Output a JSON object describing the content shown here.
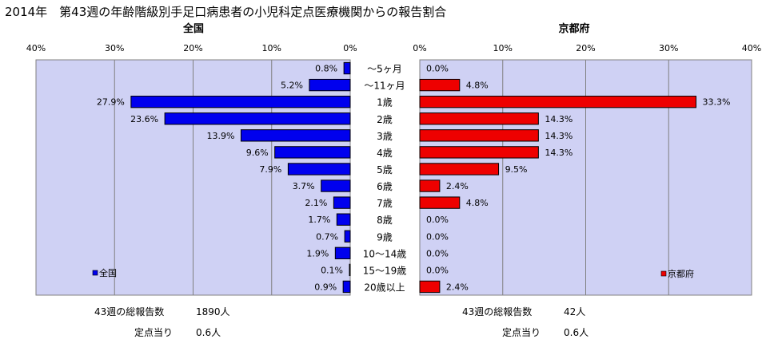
{
  "title": "2014年　第43週の年齢階級別手足口病患者の小児科定点医療機関からの報告割合",
  "chart_data": [
    {
      "type": "bar",
      "orientation": "horizontal",
      "direction": "right-to-left",
      "title": "全国",
      "legend": "全国",
      "legend_position": "bottom-left",
      "color": "#0000ee",
      "xlim": [
        0,
        40
      ],
      "ticks": [
        "40%",
        "30%",
        "20%",
        "10%",
        "0%"
      ],
      "grid": true,
      "categories": [
        "～5ヶ月",
        "～11ヶ月",
        "1歳",
        "2歳",
        "3歳",
        "4歳",
        "5歳",
        "6歳",
        "7歳",
        "8歳",
        "9歳",
        "10～14歳",
        "15～19歳",
        "20歳以上"
      ],
      "values": [
        0.8,
        5.2,
        27.9,
        23.6,
        13.9,
        9.6,
        7.9,
        3.7,
        2.1,
        1.7,
        0.7,
        1.9,
        0.1,
        0.9
      ],
      "labels": [
        "0.8%",
        "5.2%",
        "27.9%",
        "23.6%",
        "13.9%",
        "9.6%",
        "7.9%",
        "3.7%",
        "2.1%",
        "1.7%",
        "0.7%",
        "1.9%",
        "0.1%",
        "0.9%"
      ]
    },
    {
      "type": "bar",
      "orientation": "horizontal",
      "direction": "left-to-right",
      "title": "京都府",
      "legend": "京都府",
      "legend_position": "bottom-right",
      "color": "#ee0000",
      "xlim": [
        0,
        40
      ],
      "ticks": [
        "0%",
        "10%",
        "20%",
        "30%",
        "40%"
      ],
      "grid": true,
      "categories": [
        "～5ヶ月",
        "～11ヶ月",
        "1歳",
        "2歳",
        "3歳",
        "4歳",
        "5歳",
        "6歳",
        "7歳",
        "8歳",
        "9歳",
        "10～14歳",
        "15～19歳",
        "20歳以上"
      ],
      "values": [
        0.0,
        4.8,
        33.3,
        14.3,
        14.3,
        14.3,
        9.5,
        2.4,
        4.8,
        0.0,
        0.0,
        0.0,
        0.0,
        2.4
      ],
      "labels": [
        "0.0%",
        "4.8%",
        "33.3%",
        "14.3%",
        "14.3%",
        "14.3%",
        "9.5%",
        "2.4%",
        "4.8%",
        "0.0%",
        "0.0%",
        "0.0%",
        "0.0%",
        "2.4%"
      ]
    }
  ],
  "summary": {
    "national": {
      "total_label": "43週の総報告数",
      "total_value": "1890人",
      "per_site_label": "定点当り",
      "per_site_value": "0.6人"
    },
    "kyoto": {
      "total_label": "43週の総報告数",
      "total_value": "42人",
      "per_site_label": "定点当り",
      "per_site_value": "0.6人"
    }
  }
}
